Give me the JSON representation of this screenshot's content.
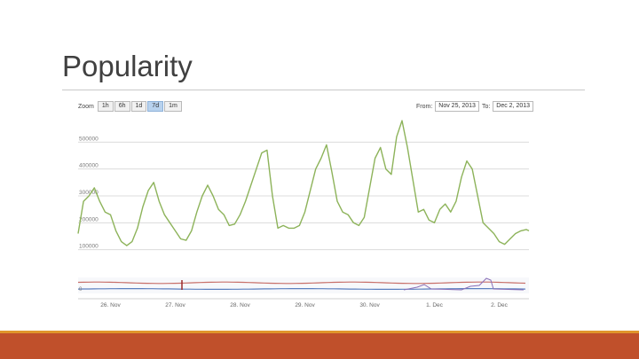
{
  "slide": {
    "title": "Popularity"
  },
  "toolbar": {
    "zoom_label": "Zoom",
    "zoom_buttons": [
      "1h",
      "6h",
      "1d",
      "7d",
      "1m"
    ],
    "active_zoom": "7d",
    "from_label": "From:",
    "from_value": "Nov 25, 2013",
    "to_label": "To:",
    "to_value": "Dec 2, 2013"
  },
  "colors": {
    "main_series": "#8db35a",
    "navigator_red": "#c8706a",
    "navigator_blue": "#5b7fbf",
    "navigator_purple": "#8a6fb8",
    "footer": "#c0502b",
    "footer_line": "#e0962c"
  },
  "chart_data": {
    "type": "line",
    "xlabel": "",
    "ylabel": "",
    "xlim": [
      "2013-11-25T12:00",
      "2013-12-02T11:00"
    ],
    "ylim": [
      0,
      600000
    ],
    "y_ticks": [
      100000,
      200000,
      300000,
      400000,
      500000
    ],
    "y_tick_labels": [
      "100000",
      "200000",
      "300000",
      "400000",
      "500000"
    ],
    "x_ticks": [
      "2013-11-26",
      "2013-11-27",
      "2013-11-28",
      "2013-11-29",
      "2013-11-30",
      "2013-12-01",
      "2013-12-02"
    ],
    "x_tick_labels": [
      "26. Nov",
      "27. Nov",
      "28. Nov",
      "29. Nov",
      "30. Nov",
      "1. Dec",
      "2. Dec"
    ],
    "grid": true,
    "series": [
      {
        "x": [
          "2013-11-25T12:00",
          "2013-11-25T14:00",
          "2013-11-25T16:00",
          "2013-11-25T18:00",
          "2013-11-25T20:00",
          "2013-11-25T22:00",
          "2013-11-26T00:00",
          "2013-11-26T02:00",
          "2013-11-26T04:00",
          "2013-11-26T06:00",
          "2013-11-26T08:00",
          "2013-11-26T10:00",
          "2013-11-26T12:00",
          "2013-11-26T14:00",
          "2013-11-26T16:00",
          "2013-11-26T18:00",
          "2013-11-26T20:00",
          "2013-11-26T22:00",
          "2013-11-27T00:00",
          "2013-11-27T02:00",
          "2013-11-27T04:00",
          "2013-11-27T06:00",
          "2013-11-27T08:00",
          "2013-11-27T10:00",
          "2013-11-27T12:00",
          "2013-11-27T14:00",
          "2013-11-27T16:00",
          "2013-11-27T18:00",
          "2013-11-27T20:00",
          "2013-11-27T22:00",
          "2013-11-28T00:00",
          "2013-11-28T02:00",
          "2013-11-28T04:00",
          "2013-11-28T06:00",
          "2013-11-28T08:00",
          "2013-11-28T10:00",
          "2013-11-28T12:00",
          "2013-11-28T14:00",
          "2013-11-28T16:00",
          "2013-11-28T18:00",
          "2013-11-28T20:00",
          "2013-11-28T22:00",
          "2013-11-29T00:00",
          "2013-11-29T02:00",
          "2013-11-29T04:00",
          "2013-11-29T06:00",
          "2013-11-29T08:00",
          "2013-11-29T10:00",
          "2013-11-29T12:00",
          "2013-11-29T14:00",
          "2013-11-29T16:00",
          "2013-11-29T18:00",
          "2013-11-29T20:00",
          "2013-11-29T22:00",
          "2013-11-30T00:00",
          "2013-11-30T02:00",
          "2013-11-30T04:00",
          "2013-11-30T06:00",
          "2013-11-30T08:00",
          "2013-11-30T10:00",
          "2013-11-30T12:00",
          "2013-11-30T14:00",
          "2013-11-30T16:00",
          "2013-11-30T18:00",
          "2013-11-30T20:00",
          "2013-11-30T22:00",
          "2013-12-01T00:00",
          "2013-12-01T02:00",
          "2013-12-01T04:00",
          "2013-12-01T06:00",
          "2013-12-01T08:00",
          "2013-12-01T10:00",
          "2013-12-01T12:00",
          "2013-12-01T14:00",
          "2013-12-01T16:00",
          "2013-12-01T18:00",
          "2013-12-01T20:00",
          "2013-12-01T22:00",
          "2013-12-02T00:00",
          "2013-12-02T02:00",
          "2013-12-02T04:00",
          "2013-12-02T06:00",
          "2013-12-02T08:00",
          "2013-12-02T10:00",
          "2013-12-02T11:00"
        ],
        "values": [
          160000,
          280000,
          300000,
          330000,
          280000,
          240000,
          230000,
          170000,
          130000,
          115000,
          130000,
          180000,
          260000,
          320000,
          350000,
          280000,
          230000,
          200000,
          170000,
          140000,
          135000,
          170000,
          240000,
          300000,
          340000,
          300000,
          250000,
          230000,
          190000,
          195000,
          230000,
          280000,
          340000,
          400000,
          460000,
          470000,
          300000,
          180000,
          190000,
          180000,
          180000,
          190000,
          240000,
          320000,
          400000,
          440000,
          490000,
          390000,
          280000,
          240000,
          230000,
          200000,
          190000,
          220000,
          330000,
          440000,
          480000,
          400000,
          380000,
          520000,
          580000,
          480000,
          360000,
          240000,
          250000,
          210000,
          200000,
          250000,
          270000,
          240000,
          280000,
          370000,
          430000,
          400000,
          300000,
          200000,
          180000,
          160000,
          130000,
          120000,
          140000,
          160000,
          170000,
          175000,
          170000
        ],
        "color": "#8db35a"
      }
    ]
  }
}
